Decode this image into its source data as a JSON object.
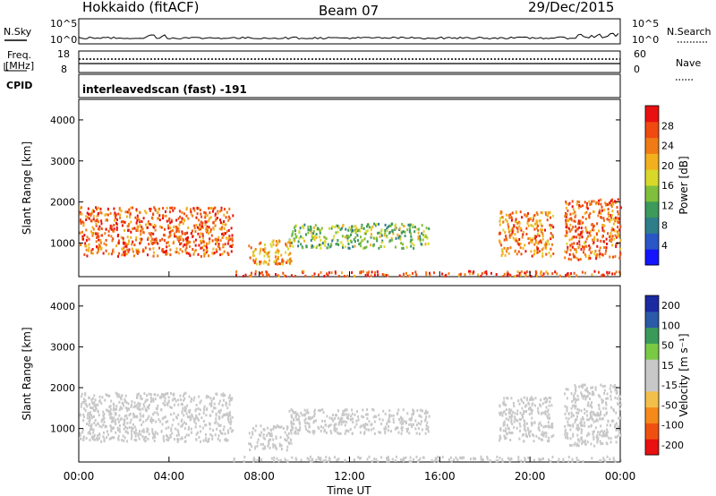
{
  "header": {
    "station": "Hokkaido (fitACF)",
    "beam": "Beam 07",
    "date": "29/Dec/2015"
  },
  "top_panels": {
    "nsky_label": "N.Sky",
    "nsky_ticks": [
      "10^5",
      "10^0"
    ],
    "nsearch_label": "N.Search",
    "nsearch_ticks": [
      "10^5",
      "10^0"
    ],
    "freq_label_1": "Freq.",
    "freq_label_2": "[MHz]",
    "freq_ticks": [
      "18",
      "8"
    ],
    "nave_label": "Nave",
    "nave_ticks": [
      "60",
      "0"
    ],
    "cpid_label": "CPID",
    "cpid_text": "interleavedscan (fast) -191"
  },
  "chart_data": [
    {
      "type": "heatmap",
      "name": "power",
      "ylabel": "Slant Range [km]",
      "y_ticks": [
        "1000",
        "2000",
        "3000",
        "4000"
      ],
      "ylim": [
        180,
        4500
      ],
      "x_ticks": [
        "00:00",
        "04:00",
        "08:00",
        "12:00",
        "16:00",
        "20:00",
        "00:00"
      ],
      "xlim_hours": [
        0,
        24
      ],
      "colorbar": {
        "label": "Power [dB]",
        "ticks": [
          "4",
          "8",
          "12",
          "16",
          "20",
          "24",
          "28"
        ],
        "range": [
          0,
          32
        ],
        "colors": [
          "#1414ff",
          "#2a56c6",
          "#2e7d8a",
          "#3c9a5a",
          "#7fbf3b",
          "#d8d82a",
          "#f2b01e",
          "#f07b14",
          "#f04a10",
          "#e81010"
        ]
      },
      "regions": [
        {
          "t0": 0.0,
          "t1": 6.8,
          "r0": 700,
          "r1": 1900,
          "level": 26
        },
        {
          "t0": 6.8,
          "t1": 24.0,
          "r0": 220,
          "r1": 340,
          "level": 27
        },
        {
          "t0": 7.5,
          "t1": 9.4,
          "r0": 500,
          "r1": 1100,
          "level": 22
        },
        {
          "t0": 9.3,
          "t1": 15.5,
          "r0": 900,
          "r1": 1500,
          "level": 14
        },
        {
          "t0": 18.6,
          "t1": 21.0,
          "r0": 700,
          "r1": 1800,
          "level": 24
        },
        {
          "t0": 21.5,
          "t1": 24.0,
          "r0": 600,
          "r1": 2100,
          "level": 25
        }
      ]
    },
    {
      "type": "heatmap",
      "name": "velocity",
      "ylabel": "Slant Range [km]",
      "y_ticks": [
        "1000",
        "2000",
        "3000",
        "4000"
      ],
      "ylim": [
        180,
        4500
      ],
      "x_ticks": [
        "00:00",
        "04:00",
        "08:00",
        "12:00",
        "16:00",
        "20:00",
        "00:00"
      ],
      "xlim_hours": [
        0,
        24
      ],
      "xlabel": "Time UT",
      "colorbar": {
        "label": "Velocity [m s⁻¹]",
        "ticks": [
          "200",
          "100",
          "50",
          "15",
          "-15",
          "-50",
          "-100",
          "-200"
        ],
        "range": [
          -250,
          250
        ],
        "colors": [
          "#e81010",
          "#f0500f",
          "#f58a1a",
          "#f2c04a",
          "#c8c8c8",
          "#c8c8c8",
          "#7ac943",
          "#3a9a5a",
          "#2a5aa8",
          "#1a2aa0"
        ]
      },
      "regions": [
        {
          "t0": 0.0,
          "t1": 6.8,
          "r0": 700,
          "r1": 1900,
          "level": 0
        },
        {
          "t0": 6.8,
          "t1": 24.0,
          "r0": 220,
          "r1": 340,
          "level": -25
        },
        {
          "t0": 7.5,
          "t1": 9.4,
          "r0": 500,
          "r1": 1100,
          "level": 0
        },
        {
          "t0": 9.3,
          "t1": 15.5,
          "r0": 900,
          "r1": 1500,
          "level": 0
        },
        {
          "t0": 18.6,
          "t1": 21.0,
          "r0": 700,
          "r1": 1800,
          "level": 0
        },
        {
          "t0": 21.5,
          "t1": 24.0,
          "r0": 600,
          "r1": 2100,
          "level": 30
        }
      ]
    }
  ]
}
